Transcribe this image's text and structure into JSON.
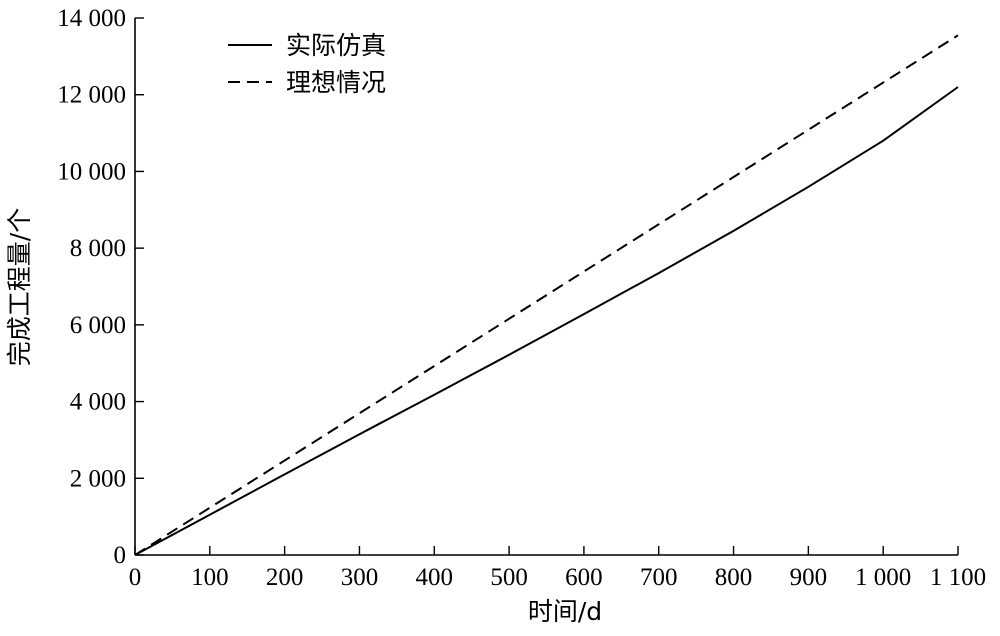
{
  "chart_data": {
    "type": "line",
    "xlabel": "时间/d",
    "ylabel": "完成工程量/个",
    "xlim": [
      0,
      1100
    ],
    "ylim": [
      0,
      14000
    ],
    "x_ticks": [
      0,
      100,
      200,
      300,
      400,
      500,
      600,
      700,
      800,
      900,
      1000,
      1100
    ],
    "x_tick_labels": [
      "0",
      "100",
      "200",
      "300",
      "400",
      "500",
      "600",
      "700",
      "800",
      "900",
      "1 000",
      "1 100"
    ],
    "y_ticks": [
      0,
      2000,
      4000,
      6000,
      8000,
      10000,
      12000,
      14000
    ],
    "y_tick_labels": [
      "0",
      "2 000",
      "4 000",
      "6 000",
      "8 000",
      "10 000",
      "12 000",
      "14 000"
    ],
    "grid": false,
    "legend_position": "top-left",
    "series": [
      {
        "name": "实际仿真",
        "style": "solid",
        "color": "#000000",
        "x": [
          0,
          100,
          200,
          300,
          400,
          500,
          600,
          700,
          800,
          900,
          1000,
          1100
        ],
        "y": [
          0,
          1050,
          2100,
          3150,
          4180,
          5220,
          6280,
          7350,
          8450,
          9600,
          10800,
          12200
        ]
      },
      {
        "name": "理想情况",
        "style": "dashed",
        "color": "#000000",
        "x": [
          0,
          1100
        ],
        "y": [
          0,
          13550
        ]
      }
    ]
  }
}
